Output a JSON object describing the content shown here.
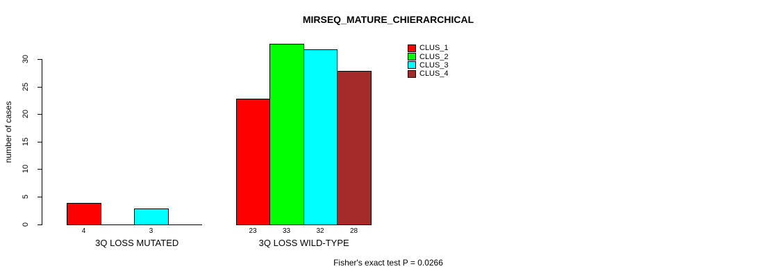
{
  "title": "MIRSEQ_MATURE_CHIERARCHICAL",
  "caption": "Fisher's exact test P = 0.0266",
  "colors": {
    "clus_1": "#ff0000",
    "clus_2": "#00ff00",
    "clus_3": "#00ffff",
    "clus_4": "#a52a2a",
    "axis": "#000000",
    "background": "#ffffff"
  },
  "chart_data": {
    "type": "bar",
    "title": "MIRSEQ_MATURE_CHIERARCHICAL",
    "xlabel": "",
    "ylabel": "number of cases",
    "categories": [
      "3Q LOSS MUTATED",
      "3Q LOSS WILD-TYPE"
    ],
    "series": [
      {
        "name": "CLUS_1",
        "color": "#ff0000",
        "values": [
          4,
          23
        ]
      },
      {
        "name": "CLUS_2",
        "color": "#00ff00",
        "values": [
          0,
          33
        ]
      },
      {
        "name": "CLUS_3",
        "color": "#00ffff",
        "values": [
          3,
          32
        ]
      },
      {
        "name": "CLUS_4",
        "color": "#a52a2a",
        "values": [
          0,
          28
        ]
      }
    ],
    "bar_value_labels": {
      "show": true,
      "hide_zero": true,
      "labels": [
        [
          "4",
          "",
          "3",
          ""
        ],
        [
          "23",
          "33",
          "32",
          "28"
        ]
      ]
    },
    "y_ticks": [
      0,
      5,
      10,
      15,
      20,
      25,
      30
    ],
    "ylim": [
      0,
      33.6
    ],
    "grid": false,
    "legend_position": "top-right",
    "legend_entries": [
      "CLUS_1",
      "CLUS_2",
      "CLUS_3",
      "CLUS_4"
    ],
    "annotation": "Fisher's exact test P = 0.0266"
  }
}
